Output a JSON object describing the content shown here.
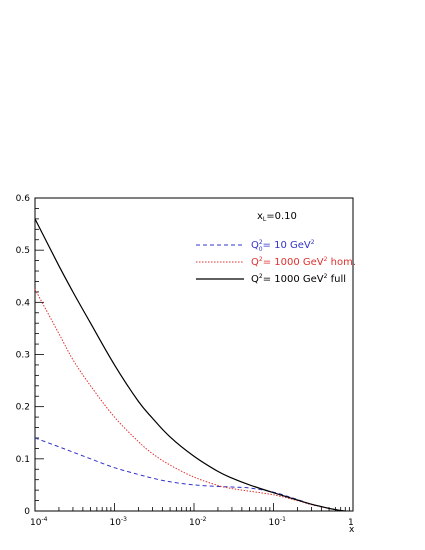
{
  "chart_data": {
    "type": "line",
    "title": "",
    "xlabel": "x",
    "ylabel": "",
    "x_scale": "log",
    "xlim": [
      0.0001,
      1
    ],
    "ylim": [
      0,
      0.6
    ],
    "grid": false,
    "legend_placement": "top-right",
    "x_ticks": [
      {
        "value": 0.0001,
        "base": "10",
        "exp": "-4"
      },
      {
        "value": 0.001,
        "base": "10",
        "exp": "-3"
      },
      {
        "value": 0.01,
        "base": "10",
        "exp": "-2"
      },
      {
        "value": 0.1,
        "base": "10",
        "exp": "-1"
      },
      {
        "value": 1,
        "base": "1",
        "exp": ""
      }
    ],
    "y_ticks": [
      "0",
      "0.1",
      "0.2",
      "0.3",
      "0.4",
      "0.5",
      "0.6"
    ],
    "annotation": {
      "main": "x",
      "sub": "L",
      "rest": "=0.10"
    },
    "series": [
      {
        "id": "q0",
        "legend": {
          "q": "Q",
          "sup": "2",
          "sub": "0",
          "rest": "= 10 GeV",
          "unit_sup": "2",
          "tail": ""
        },
        "color": "#3333cc",
        "dash": "4,3",
        "x": [
          0.0001,
          0.0002,
          0.0003,
          0.0005,
          0.001,
          0.002,
          0.003,
          0.005,
          0.01,
          0.02,
          0.03,
          0.05,
          0.1,
          0.2,
          0.3,
          0.5,
          0.7,
          0.8
        ],
        "y": [
          0.14,
          0.123,
          0.113,
          0.1,
          0.083,
          0.07,
          0.063,
          0.056,
          0.05,
          0.047,
          0.046,
          0.044,
          0.036,
          0.022,
          0.013,
          0.005,
          0.001,
          0.0
        ]
      },
      {
        "id": "hom",
        "legend": {
          "q": "Q",
          "sup": "2",
          "sub": "",
          "rest": "= 1000 GeV",
          "unit_sup": "2",
          "tail": " hom."
        },
        "color": "#e03030",
        "dash": "1.5,1.5",
        "x": [
          0.0001,
          0.0002,
          0.0003,
          0.0005,
          0.001,
          0.002,
          0.003,
          0.005,
          0.01,
          0.02,
          0.03,
          0.05,
          0.1,
          0.2,
          0.3,
          0.5,
          0.7,
          0.8
        ],
        "y": [
          0.425,
          0.34,
          0.29,
          0.24,
          0.18,
          0.133,
          0.11,
          0.088,
          0.065,
          0.049,
          0.043,
          0.038,
          0.031,
          0.02,
          0.012,
          0.005,
          0.001,
          0.0
        ]
      },
      {
        "id": "full",
        "legend": {
          "q": "Q",
          "sup": "2",
          "sub": "",
          "rest": "= 1000 GeV",
          "unit_sup": "2",
          "tail": " full"
        },
        "color": "#000000",
        "dash": "",
        "x": [
          0.0001,
          0.0002,
          0.0003,
          0.0005,
          0.001,
          0.002,
          0.003,
          0.005,
          0.01,
          0.02,
          0.03,
          0.05,
          0.1,
          0.2,
          0.3,
          0.5,
          0.7,
          0.8
        ],
        "y": [
          0.56,
          0.47,
          0.42,
          0.36,
          0.28,
          0.21,
          0.178,
          0.142,
          0.105,
          0.076,
          0.063,
          0.05,
          0.035,
          0.021,
          0.013,
          0.005,
          0.001,
          0.0
        ]
      }
    ]
  }
}
